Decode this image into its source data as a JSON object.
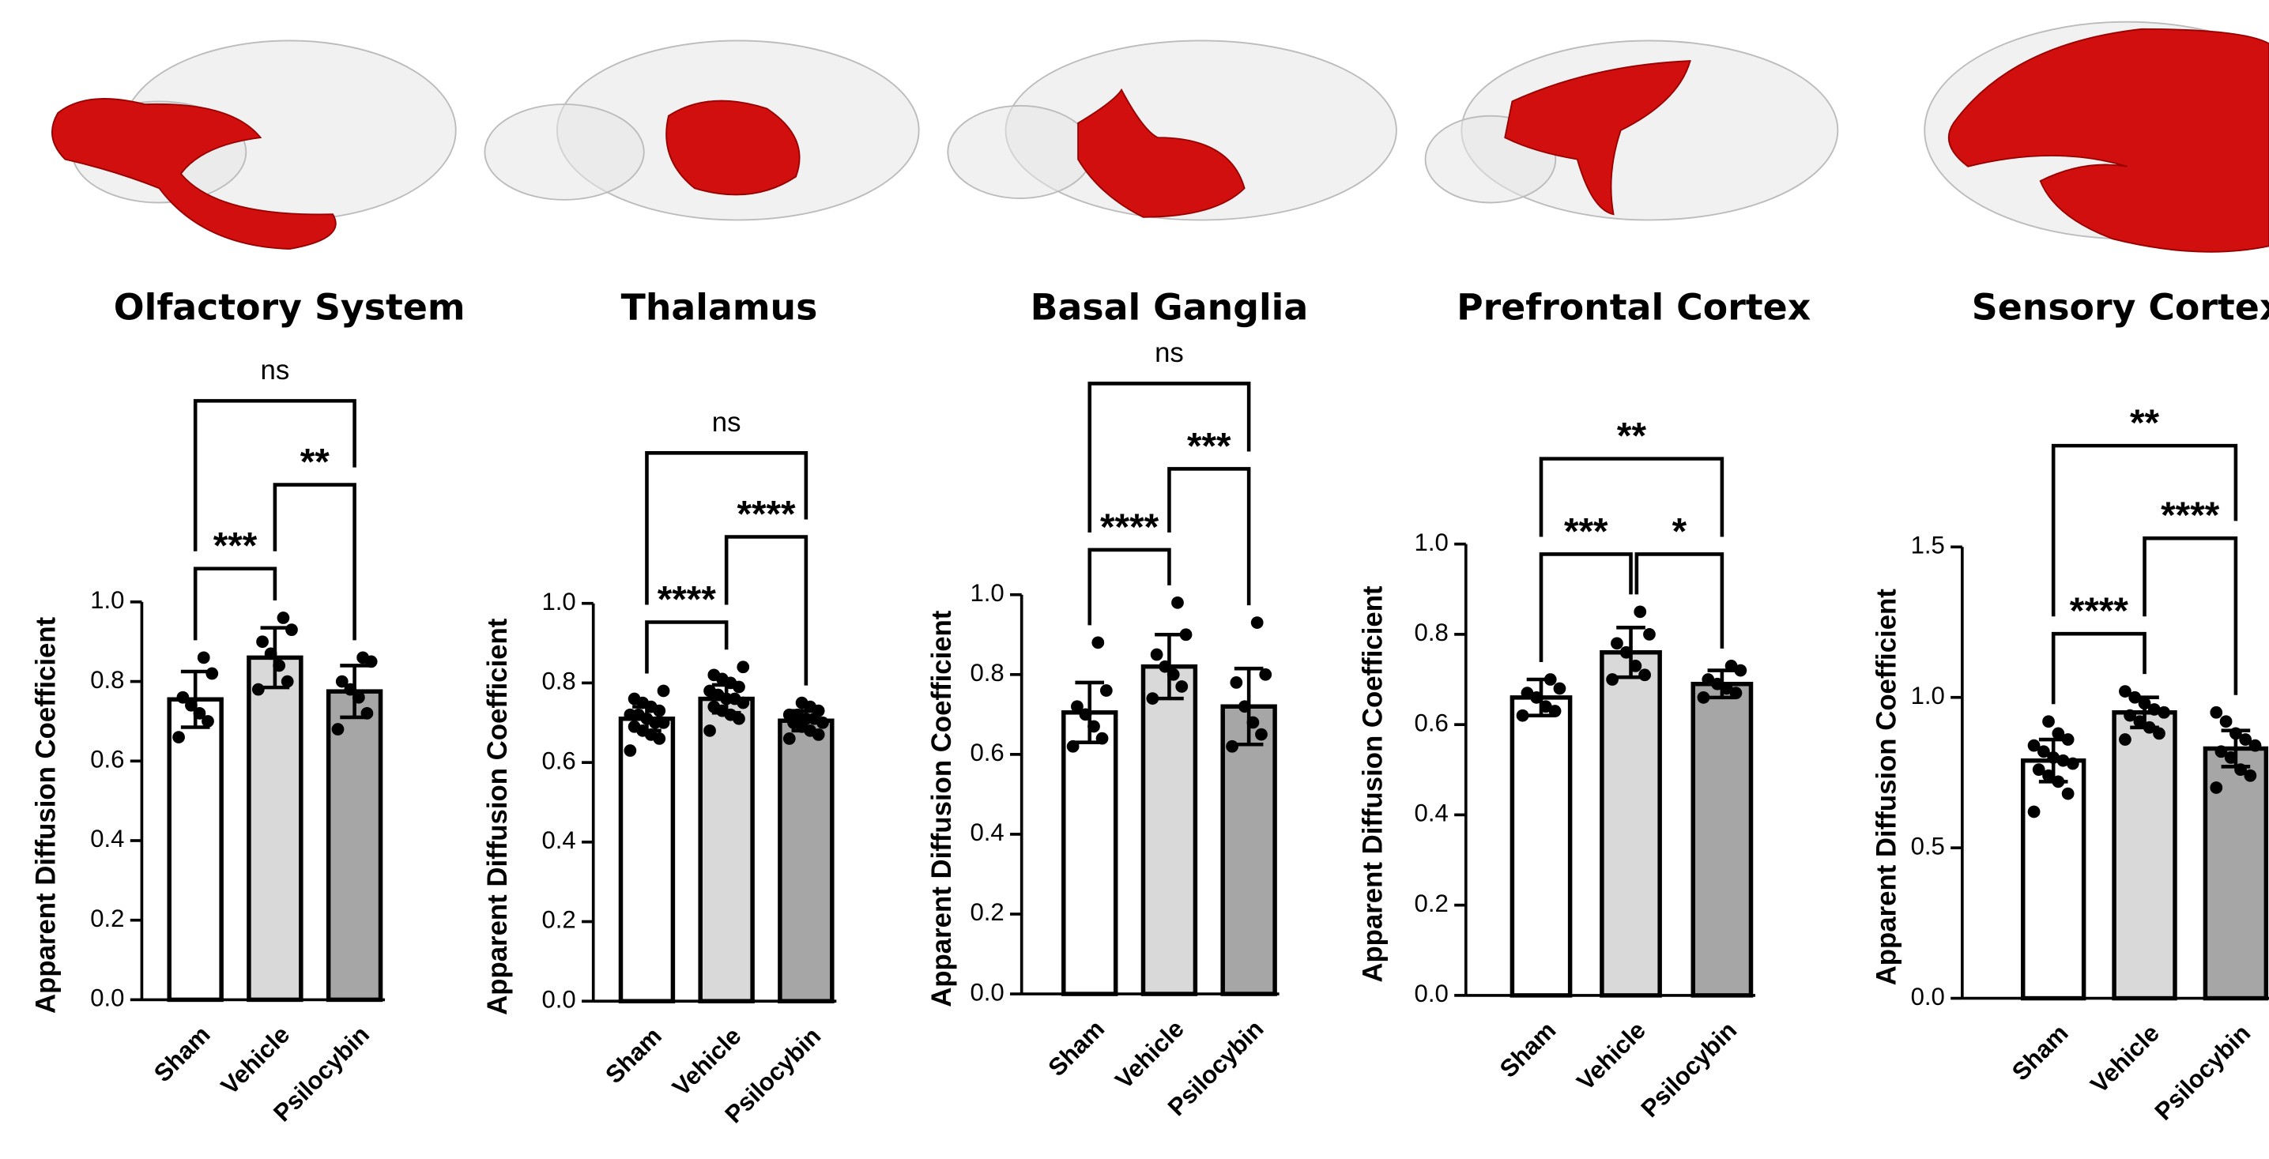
{
  "chart_data": [
    {
      "type": "bar",
      "title": "Olfactory System",
      "y_label": "Apparent Diffusion Coefficient",
      "categories": [
        "Sham",
        "Vehicle",
        "Psilocybin"
      ],
      "colors": [
        "#ffffff",
        "#d9d9d9",
        "#a6a6a6"
      ],
      "values": [
        0.755,
        0.86,
        0.775
      ],
      "errors": [
        0.07,
        0.075,
        0.065
      ],
      "points": [
        [
          0.66,
          0.7,
          0.72,
          0.74,
          0.76,
          0.82,
          0.86
        ],
        [
          0.78,
          0.8,
          0.84,
          0.87,
          0.9,
          0.93,
          0.96
        ],
        [
          0.68,
          0.72,
          0.76,
          0.78,
          0.8,
          0.85,
          0.86
        ]
      ],
      "ylim": [
        0,
        1
      ],
      "yticks": [
        {
          "value": 0,
          "label": "0.0"
        },
        {
          "value": 0.2,
          "label": "0.2"
        },
        {
          "value": 0.4,
          "label": "0.4"
        },
        {
          "value": 0.6,
          "label": "0.6"
        },
        {
          "value": 0.8,
          "label": "0.8"
        },
        {
          "value": 1,
          "label": "1.0"
        }
      ],
      "comparisons": [
        {
          "pair": [
            0,
            1
          ],
          "label": "***"
        },
        {
          "pair": [
            1,
            2
          ],
          "label": "**"
        },
        {
          "pair": [
            0,
            2
          ],
          "label": "ns"
        }
      ]
    },
    {
      "type": "bar",
      "title": "Thalamus",
      "y_label": "Apparent Diffusion Coefficient",
      "categories": [
        "Sham",
        "Vehicle",
        "Psilocybin"
      ],
      "colors": [
        "#ffffff",
        "#d9d9d9",
        "#a6a6a6"
      ],
      "values": [
        0.71,
        0.76,
        0.705
      ],
      "errors": [
        0.03,
        0.035,
        0.025
      ],
      "points": [
        [
          0.63,
          0.66,
          0.67,
          0.68,
          0.69,
          0.7,
          0.7,
          0.71,
          0.72,
          0.72,
          0.73,
          0.74,
          0.75,
          0.76,
          0.78
        ],
        [
          0.68,
          0.71,
          0.72,
          0.73,
          0.74,
          0.75,
          0.76,
          0.76,
          0.77,
          0.78,
          0.79,
          0.8,
          0.81,
          0.82,
          0.84
        ],
        [
          0.66,
          0.67,
          0.68,
          0.69,
          0.7,
          0.7,
          0.71,
          0.71,
          0.72,
          0.72,
          0.73,
          0.74,
          0.75
        ]
      ],
      "ylim": [
        0,
        1
      ],
      "yticks": [
        {
          "value": 0,
          "label": "0.0"
        },
        {
          "value": 0.2,
          "label": "0.2"
        },
        {
          "value": 0.4,
          "label": "0.4"
        },
        {
          "value": 0.6,
          "label": "0.6"
        },
        {
          "value": 0.8,
          "label": "0.8"
        },
        {
          "value": 1,
          "label": "1.0"
        }
      ],
      "comparisons": [
        {
          "pair": [
            0,
            1
          ],
          "label": "****"
        },
        {
          "pair": [
            1,
            2
          ],
          "label": "****"
        },
        {
          "pair": [
            0,
            2
          ],
          "label": "ns"
        }
      ]
    },
    {
      "type": "bar",
      "title": "Basal Ganglia",
      "y_label": "Apparent Diffusion Coefficient",
      "categories": [
        "Sham",
        "Vehicle",
        "Psilocybin"
      ],
      "colors": [
        "#ffffff",
        "#d9d9d9",
        "#a6a6a6"
      ],
      "values": [
        0.705,
        0.82,
        0.72
      ],
      "errors": [
        0.075,
        0.08,
        0.095
      ],
      "points": [
        [
          0.62,
          0.64,
          0.67,
          0.7,
          0.72,
          0.76,
          0.88
        ],
        [
          0.74,
          0.77,
          0.8,
          0.82,
          0.85,
          0.9,
          0.98
        ],
        [
          0.62,
          0.65,
          0.68,
          0.72,
          0.78,
          0.8,
          0.93
        ]
      ],
      "ylim": [
        0,
        1
      ],
      "yticks": [
        {
          "value": 0,
          "label": "0.0"
        },
        {
          "value": 0.2,
          "label": "0.2"
        },
        {
          "value": 0.4,
          "label": "0.4"
        },
        {
          "value": 0.6,
          "label": "0.6"
        },
        {
          "value": 0.8,
          "label": "0.8"
        },
        {
          "value": 1,
          "label": "1.0"
        }
      ],
      "comparisons": [
        {
          "pair": [
            0,
            1
          ],
          "label": "****"
        },
        {
          "pair": [
            1,
            2
          ],
          "label": "***"
        },
        {
          "pair": [
            0,
            2
          ],
          "label": "ns"
        }
      ]
    },
    {
      "type": "bar",
      "title": "Prefrontal Cortex",
      "y_label": "Apparent Diffusion Coefficient",
      "categories": [
        "Sham",
        "Vehicle",
        "Psilocybin"
      ],
      "colors": [
        "#ffffff",
        "#d9d9d9",
        "#a6a6a6"
      ],
      "values": [
        0.66,
        0.76,
        0.69
      ],
      "errors": [
        0.04,
        0.055,
        0.03
      ],
      "points": [
        [
          0.62,
          0.63,
          0.64,
          0.66,
          0.67,
          0.68,
          0.7
        ],
        [
          0.7,
          0.71,
          0.73,
          0.76,
          0.78,
          0.8,
          0.85
        ],
        [
          0.66,
          0.67,
          0.68,
          0.69,
          0.7,
          0.72,
          0.73
        ]
      ],
      "ylim": [
        0,
        1
      ],
      "yticks": [
        {
          "value": 0,
          "label": "0.0"
        },
        {
          "value": 0.2,
          "label": "0.2"
        },
        {
          "value": 0.4,
          "label": "0.4"
        },
        {
          "value": 0.6,
          "label": "0.6"
        },
        {
          "value": 0.8,
          "label": "0.8"
        },
        {
          "value": 1,
          "label": "1.0"
        }
      ],
      "comparisons": [
        {
          "pair": [
            0,
            1
          ],
          "label": "***"
        },
        {
          "pair": [
            1,
            2
          ],
          "label": "*"
        },
        {
          "pair": [
            0,
            2
          ],
          "label": "**"
        }
      ]
    },
    {
      "type": "bar",
      "title": "Sensory Cortex",
      "y_label": "Apparent Diffusion Coefficient",
      "categories": [
        "Sham",
        "Vehicle",
        "Psilocybin"
      ],
      "colors": [
        "#ffffff",
        "#d9d9d9",
        "#a6a6a6"
      ],
      "values": [
        0.79,
        0.95,
        0.83
      ],
      "errors": [
        0.07,
        0.05,
        0.06
      ],
      "points": [
        [
          0.62,
          0.68,
          0.72,
          0.74,
          0.76,
          0.78,
          0.79,
          0.8,
          0.82,
          0.84,
          0.86,
          0.88,
          0.92
        ],
        [
          0.86,
          0.88,
          0.9,
          0.92,
          0.94,
          0.95,
          0.96,
          0.98,
          1.0,
          1.02
        ],
        [
          0.7,
          0.74,
          0.76,
          0.8,
          0.82,
          0.84,
          0.86,
          0.88,
          0.92,
          0.95
        ]
      ],
      "ylim": [
        0,
        1.5
      ],
      "yticks": [
        {
          "value": 0,
          "label": "0.0"
        },
        {
          "value": 0.5,
          "label": "0.5"
        },
        {
          "value": 1,
          "label": "1.0"
        },
        {
          "value": 1.5,
          "label": "1.5"
        }
      ],
      "comparisons": [
        {
          "pair": [
            0,
            1
          ],
          "label": "****"
        },
        {
          "pair": [
            1,
            2
          ],
          "label": "****"
        },
        {
          "pair": [
            0,
            2
          ],
          "label": "**"
        }
      ]
    }
  ]
}
